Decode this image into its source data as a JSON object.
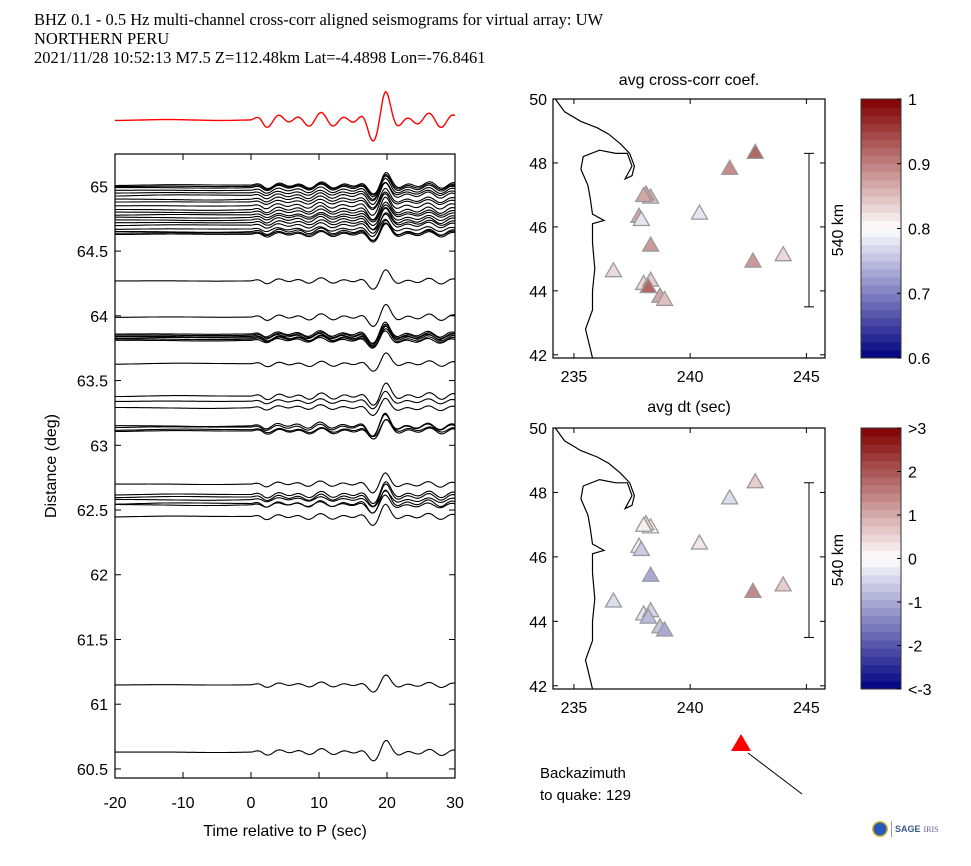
{
  "header": {
    "line1": "BHZ  0.1 - 0.5 Hz  multi-channel cross-corr aligned seismograms for virtual array: UW",
    "line2": "NORTHERN PERU",
    "line3": "2021/11/28  10:52:13  M7.5  Z=112.48km Lat=-4.4898 Lon=-76.8461"
  },
  "backazimuth": {
    "label_line1": "Backazimuth",
    "label_line2": "to quake:  129",
    "value": 129,
    "arrow_color": "#ff0000"
  },
  "logo": {
    "sage": "SAGE",
    "iris": "IRIS"
  },
  "chart_data": [
    {
      "type": "line",
      "name": "seismogram-record-section",
      "title": "",
      "xlabel": "Time relative to P (sec)",
      "ylabel": "Distance (deg)",
      "xlim": [
        -20,
        30
      ],
      "ylim": [
        60.43,
        65.25
      ],
      "xticks": [
        -20,
        -10,
        0,
        10,
        20,
        30
      ],
      "yticks": [
        60.5,
        61,
        61.5,
        62,
        62.5,
        63,
        63.5,
        64,
        64.5,
        65
      ],
      "ytick_labels": [
        "60.5",
        "61",
        "61.5",
        "62",
        "62.5",
        "63",
        "63.5",
        "64",
        "64.5",
        "65"
      ],
      "stack_trace_color": "#ff0000",
      "trace_color": "#000000",
      "trace_offsets_deg": [
        65.01,
        65.0,
        64.99,
        64.97,
        64.95,
        64.93,
        64.9,
        64.88,
        64.85,
        64.82,
        64.8,
        64.78,
        64.76,
        64.74,
        64.72,
        64.7,
        64.67,
        64.65,
        64.64,
        64.63,
        64.27,
        63.99,
        63.86,
        63.85,
        63.84,
        63.83,
        63.82,
        63.81,
        63.63,
        63.38,
        63.34,
        63.29,
        63.15,
        63.14,
        63.12,
        63.11,
        62.7,
        62.62,
        62.6,
        62.58,
        62.55,
        62.54,
        62.45,
        61.15,
        60.63
      ]
    },
    {
      "type": "scatter",
      "name": "map-avg-cross-corr",
      "title": "avg cross-corr coef.",
      "xlabel": "",
      "xlim": [
        234.1,
        245.8
      ],
      "ylim": [
        41.9,
        50
      ],
      "xticks": [
        235,
        240,
        245
      ],
      "yticks": [
        42,
        44,
        46,
        48,
        50
      ],
      "scale_bar_label": "540 km",
      "colorbar": {
        "min": 0.6,
        "max": 1,
        "ticks": [
          "0.6",
          "0.7",
          "0.8",
          "0.9",
          "1"
        ]
      },
      "stations": [
        {
          "lon": 242.8,
          "lat": 48.3,
          "v": 0.92
        },
        {
          "lon": 241.7,
          "lat": 47.8,
          "v": 0.89
        },
        {
          "lon": 238.3,
          "lat": 46.9,
          "v": 0.85
        },
        {
          "lon": 238.1,
          "lat": 47.0,
          "v": 0.88
        },
        {
          "lon": 238.0,
          "lat": 46.95,
          "v": 0.87
        },
        {
          "lon": 237.8,
          "lat": 46.3,
          "v": 0.87
        },
        {
          "lon": 237.9,
          "lat": 46.2,
          "v": 0.78
        },
        {
          "lon": 240.4,
          "lat": 46.4,
          "v": 0.78
        },
        {
          "lon": 238.3,
          "lat": 45.4,
          "v": 0.88
        },
        {
          "lon": 236.7,
          "lat": 44.6,
          "v": 0.83
        },
        {
          "lon": 242.7,
          "lat": 44.9,
          "v": 0.88
        },
        {
          "lon": 244.0,
          "lat": 45.1,
          "v": 0.83
        },
        {
          "lon": 238.0,
          "lat": 44.2,
          "v": 0.83
        },
        {
          "lon": 238.3,
          "lat": 44.3,
          "v": 0.84
        },
        {
          "lon": 238.2,
          "lat": 44.1,
          "v": 0.92
        },
        {
          "lon": 238.7,
          "lat": 43.8,
          "v": 0.87
        },
        {
          "lon": 238.9,
          "lat": 43.7,
          "v": 0.85
        }
      ]
    },
    {
      "type": "scatter",
      "name": "map-avg-dt",
      "title": "avg dt (sec)",
      "xlabel": "",
      "xlim": [
        234.1,
        245.8
      ],
      "ylim": [
        41.9,
        50
      ],
      "xticks": [
        235,
        240,
        245
      ],
      "yticks": [
        42,
        44,
        46,
        48,
        50
      ],
      "scale_bar_label": "540 km",
      "colorbar": {
        "min": -3,
        "max": 3,
        "ticks": [
          "<-3",
          "-2",
          "-1",
          "0",
          "1",
          "2",
          ">3"
        ]
      },
      "stations": [
        {
          "lon": 242.8,
          "lat": 48.3,
          "v": 0.6
        },
        {
          "lon": 241.7,
          "lat": 47.8,
          "v": -0.4
        },
        {
          "lon": 238.3,
          "lat": 46.9,
          "v": 0.0
        },
        {
          "lon": 238.1,
          "lat": 47.0,
          "v": 0.6
        },
        {
          "lon": 238.0,
          "lat": 46.95,
          "v": 0.2
        },
        {
          "lon": 237.8,
          "lat": 46.3,
          "v": 0.2
        },
        {
          "lon": 237.9,
          "lat": 46.2,
          "v": -0.6
        },
        {
          "lon": 240.4,
          "lat": 46.4,
          "v": 0.3
        },
        {
          "lon": 238.3,
          "lat": 45.4,
          "v": -1.0
        },
        {
          "lon": 236.7,
          "lat": 44.6,
          "v": -0.4
        },
        {
          "lon": 242.7,
          "lat": 44.9,
          "v": 1.4
        },
        {
          "lon": 244.0,
          "lat": 45.1,
          "v": 0.6
        },
        {
          "lon": 238.0,
          "lat": 44.2,
          "v": -0.3
        },
        {
          "lon": 238.3,
          "lat": 44.3,
          "v": -0.5
        },
        {
          "lon": 238.2,
          "lat": 44.1,
          "v": -0.8
        },
        {
          "lon": 238.7,
          "lat": 43.8,
          "v": -0.7
        },
        {
          "lon": 238.9,
          "lat": 43.7,
          "v": -1.0
        }
      ]
    }
  ]
}
